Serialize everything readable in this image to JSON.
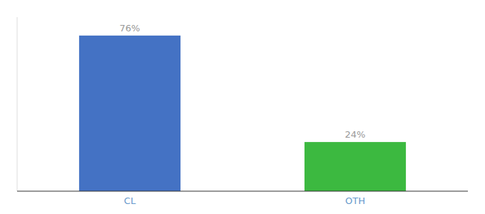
{
  "chart_data": {
    "type": "bar",
    "categories": [
      "CL",
      "OTH"
    ],
    "values": [
      76,
      24
    ],
    "value_labels": [
      "76%",
      "24%"
    ],
    "colors": [
      "#4472c4",
      "#3cb940"
    ],
    "ylim": [
      0,
      85
    ],
    "data_labels": true,
    "tick_labels": "x",
    "grid": false
  }
}
